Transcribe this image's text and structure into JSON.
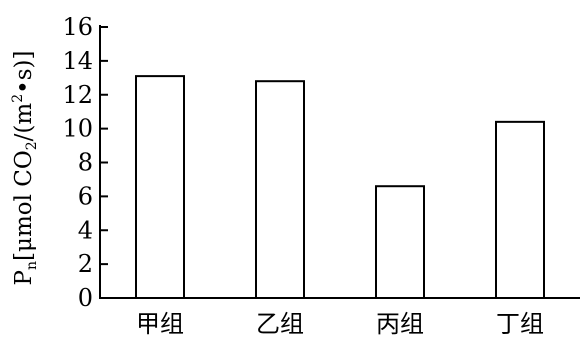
{
  "chart_data": {
    "type": "bar",
    "categories": [
      "甲组",
      "乙组",
      "丙组",
      "丁组"
    ],
    "values": [
      13.1,
      12.8,
      6.6,
      10.4
    ],
    "ylim": [
      0,
      16
    ],
    "yticks": [
      "0",
      "2",
      "4",
      "6",
      "8",
      "10",
      "12",
      "14",
      "16"
    ],
    "ylabel": {
      "symbol": "P",
      "symbol_sub": "n",
      "unit_open": "[μmol CO",
      "unit_sub": "2",
      "unit_mid": "/(m",
      "unit_sup": "2",
      "unit_close": "•s)]"
    },
    "xlabel": "",
    "title": "",
    "grid": false,
    "bar_fill": "#ffffff",
    "bar_stroke": "#000000"
  }
}
